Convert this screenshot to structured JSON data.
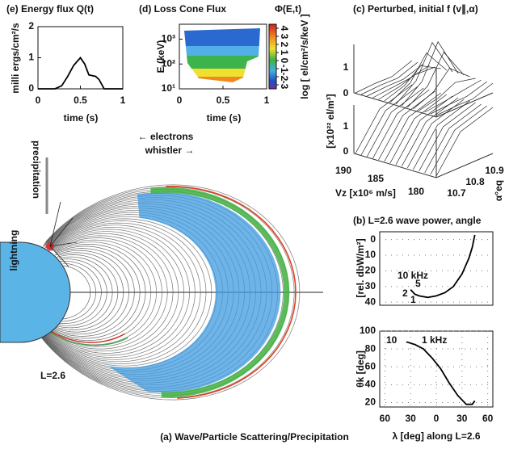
{
  "chart_data": [
    {
      "type": "line",
      "title": "(e) Energy flux Q(t)",
      "y_label": "milli ergs/cm²/s",
      "x_label": "time (s)",
      "x": [
        0,
        0.2,
        0.28,
        0.35,
        0.42,
        0.5,
        0.55,
        0.6,
        0.68,
        0.72,
        0.78,
        1
      ],
      "values": [
        0,
        0,
        0.1,
        0.4,
        0.75,
        1.0,
        0.8,
        0.45,
        0.4,
        0.3,
        0,
        0
      ],
      "color": "#000000",
      "xlim": [
        0,
        1
      ],
      "ylim": [
        0,
        2
      ],
      "xticks": [
        0,
        0.5,
        1
      ],
      "yticks": [
        0,
        1,
        2
      ]
    },
    {
      "type": "heatmap",
      "title": "(d) Loss Cone Flux",
      "annotation": "Φ(E,t)",
      "y_label": "E (keV)",
      "x_label": "time (s)",
      "xlim": [
        0,
        1
      ],
      "ylim": [
        10,
        4000
      ],
      "log_y": true,
      "xticks": [
        0,
        0.5,
        1
      ],
      "yticks": [
        {
          "value": 10,
          "label": "10¹"
        },
        {
          "value": 100,
          "label": "10²"
        },
        {
          "value": 1000,
          "label": "10³"
        }
      ],
      "colorbar_label": "log [ el/cm²/s/keV ]",
      "colorbar_lim": [
        -3.5,
        4.5
      ],
      "colorbar_ticks": [
        4,
        3,
        2,
        1,
        0,
        -1,
        -2,
        -3
      ]
    },
    {
      "type": "line",
      "title": "(b) L=2.6 wave power, angle",
      "y_label": "[rel. dbW/m²]",
      "x": [
        -30,
        -25,
        -20,
        -10,
        0,
        10,
        20,
        30,
        38,
        42,
        45
      ],
      "values": [
        32,
        35,
        36,
        37,
        36,
        34,
        30,
        22,
        12,
        5,
        -3
      ],
      "annotations": [
        "10 kHz",
        "5",
        "2",
        "1"
      ],
      "color": "#000000",
      "xlim": [
        -66,
        66
      ],
      "ylim": [
        42,
        -5
      ],
      "yticks": [
        0,
        10,
        20,
        30,
        40
      ],
      "grid": true
    },
    {
      "type": "line",
      "y_label": "θk [deg]",
      "x_label": "λ [deg] along L=2.6",
      "x": [
        -35,
        -25,
        -15,
        -5,
        5,
        15,
        25,
        35,
        42,
        45
      ],
      "values": [
        88,
        85,
        80,
        70,
        58,
        42,
        28,
        18,
        18,
        22
      ],
      "annotations": [
        "10",
        "1 kHz"
      ],
      "color": "#000000",
      "xlim": [
        -66,
        66
      ],
      "ylim": [
        15,
        100
      ],
      "xticks": [
        {
          "value": -60,
          "label": "60"
        },
        {
          "value": -30,
          "label": "30"
        },
        0,
        30,
        60
      ],
      "yticks": [
        20,
        40,
        60,
        80,
        100
      ],
      "grid": true
    }
  ],
  "panel_c": {
    "title": "(c) Perturbed, initial f (v∥,α)",
    "z_label": "[x10²² el/m³]",
    "z_ticks_upper": [
      "1",
      "0"
    ],
    "z_ticks_lower": [
      "1",
      "0"
    ],
    "vz_ticks": [
      "190",
      "185",
      "180"
    ],
    "vz_label": "Vz [x10⁶ m/s]",
    "alpha_ticks": [
      "10.9",
      "10.8",
      "10.7"
    ],
    "alpha_label": "α°eq"
  },
  "panel_a": {
    "caption": "(a) Wave/Particle Scattering/Precipitation",
    "precipitation": "precipitation",
    "lightning": "lightning",
    "electrons": "← electrons",
    "whistler": "whistler →",
    "l_shell": "L=2.6"
  }
}
